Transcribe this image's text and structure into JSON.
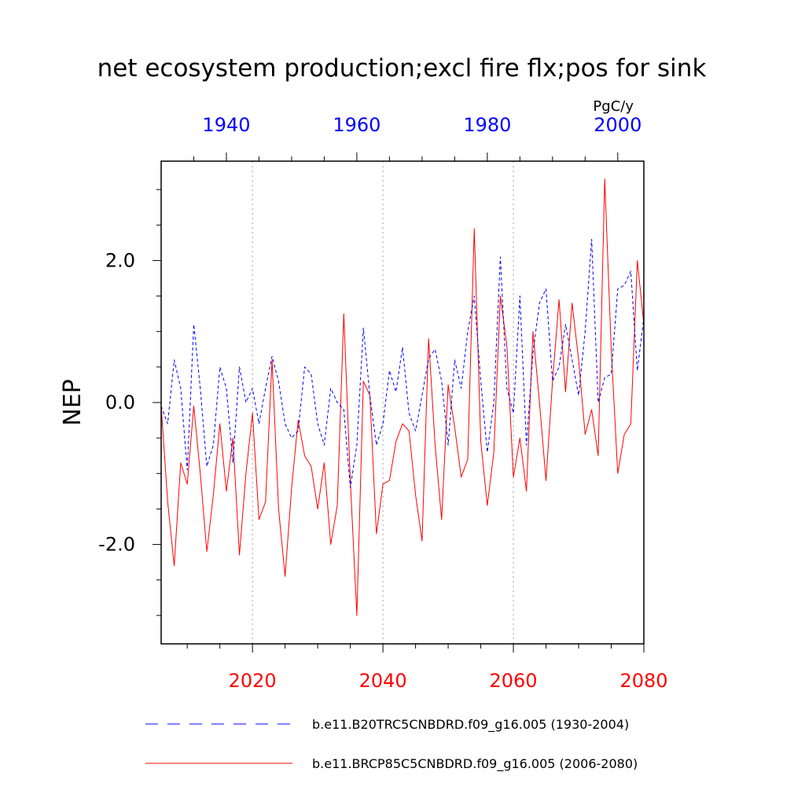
{
  "chart_data": {
    "type": "line",
    "title": "net ecosystem production;excl fire flx;pos for sink",
    "ylabel": "NEP",
    "units": "PgC/y",
    "ylim": [
      -3.4,
      3.4
    ],
    "yticks": [
      -2.0,
      0.0,
      2.0
    ],
    "ytick_labels": [
      "-2.0",
      "0.0",
      "2.0"
    ],
    "ytick_minor_step": 0.5,
    "bottom_axis": {
      "range": [
        2006,
        2080
      ],
      "ticks": [
        2020,
        2040,
        2060,
        2080
      ],
      "tick_labels": [
        "2020",
        "2040",
        "2060",
        "2080"
      ],
      "color": "#ff0000"
    },
    "top_axis": {
      "range": [
        1930,
        2004
      ],
      "ticks": [
        1940,
        1960,
        1980,
        2000
      ],
      "tick_labels": [
        "1940",
        "1960",
        "1980",
        "2000"
      ],
      "color": "#0000ff"
    },
    "gridlines_x": [
      2020,
      2040,
      2060
    ],
    "series": [
      {
        "name": "b.e11.B20TRC5CNBDRD.f09_g16.005 (1930-2004)",
        "axis": "top",
        "color": "#0000ff",
        "style": "dashed",
        "x_start": 1930,
        "values": [
          -0.05,
          -0.3,
          0.6,
          0.2,
          -0.95,
          1.1,
          0.2,
          -0.9,
          -0.6,
          0.5,
          0.2,
          -0.85,
          0.5,
          0.0,
          0.2,
          -0.3,
          0.2,
          0.65,
          0.3,
          -0.3,
          -0.5,
          -0.4,
          0.5,
          0.4,
          -0.3,
          -0.6,
          0.2,
          0.0,
          -0.1,
          -1.2,
          -0.6,
          1.05,
          0.1,
          -0.6,
          -0.3,
          0.45,
          0.15,
          0.78,
          -0.15,
          -0.4,
          0.1,
          0.62,
          0.75,
          0.3,
          -0.6,
          0.6,
          0.2,
          1.0,
          1.5,
          0.3,
          -0.7,
          0.0,
          2.05,
          0.2,
          -0.15,
          1.5,
          -0.6,
          0.7,
          1.4,
          1.6,
          0.3,
          0.5,
          1.1,
          0.6,
          0.1,
          1.0,
          2.3,
          0.0,
          0.35,
          0.4,
          1.6,
          1.65,
          1.85,
          0.45,
          1.2
        ]
      },
      {
        "name": "b.e11.BRCP85C5CNBDRD.f09_g16.005 (2006-2080)",
        "axis": "bottom",
        "color": "#ff0000",
        "style": "solid",
        "x_start": 2006,
        "values": [
          -0.05,
          -1.4,
          -2.3,
          -0.85,
          -1.15,
          -0.05,
          -1.0,
          -2.1,
          -1.3,
          -0.3,
          -1.25,
          -0.5,
          -2.15,
          -1.0,
          -0.15,
          -1.65,
          -1.4,
          0.6,
          -1.5,
          -2.45,
          -1.2,
          -0.25,
          -0.75,
          -0.9,
          -1.5,
          -0.85,
          -2.0,
          -1.45,
          1.25,
          -1.1,
          -3.0,
          0.3,
          0.1,
          -1.85,
          -1.15,
          -1.1,
          -0.55,
          -0.3,
          -0.4,
          -1.3,
          -1.95,
          0.9,
          -0.6,
          -1.65,
          0.25,
          -0.35,
          -1.05,
          -0.8,
          2.45,
          -0.55,
          -1.45,
          -0.7,
          1.5,
          0.8,
          -1.05,
          -0.5,
          -1.25,
          1.0,
          0.0,
          -1.1,
          0.3,
          1.45,
          0.15,
          1.4,
          0.6,
          -0.45,
          -0.1,
          -0.75,
          3.15,
          0.75,
          -1.0,
          -0.45,
          -0.3,
          2.0,
          1.1
        ]
      }
    ],
    "legend": [
      {
        "label": "b.e11.B20TRC5CNBDRD.f09_g16.005 (1930-2004)",
        "color": "#0000ff",
        "style": "dashed"
      },
      {
        "label": "b.e11.BRCP85C5CNBDRD.f09_g16.005 (2006-2080)",
        "color": "#ff0000",
        "style": "solid"
      }
    ]
  }
}
